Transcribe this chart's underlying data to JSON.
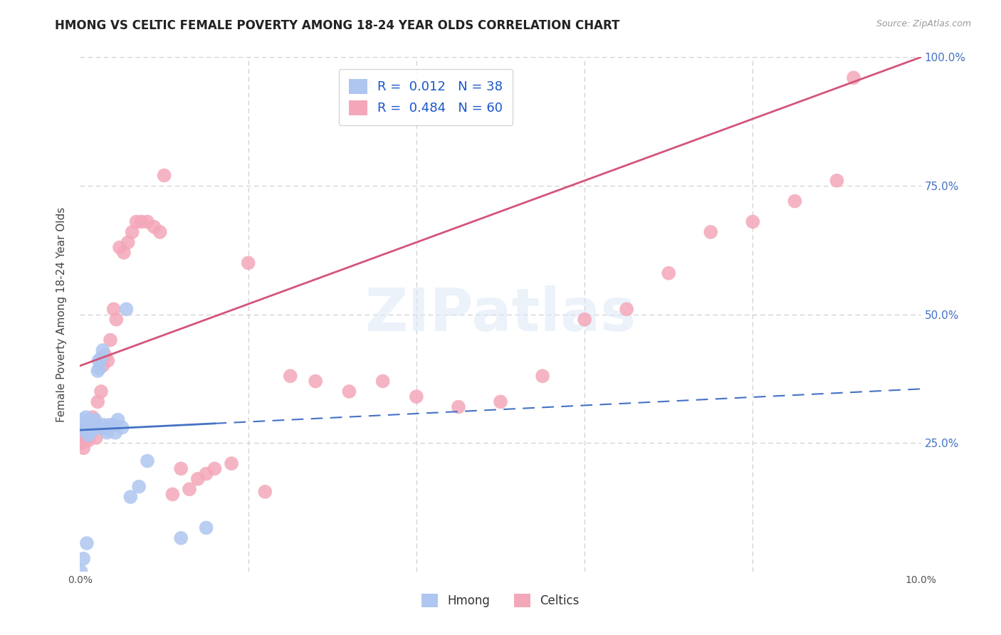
{
  "title": "HMONG VS CELTIC FEMALE POVERTY AMONG 18-24 YEAR OLDS CORRELATION CHART",
  "source": "Source: ZipAtlas.com",
  "ylabel": "Female Poverty Among 18-24 Year Olds",
  "background_color": "#ffffff",
  "grid_color": "#cccccc",
  "hmong_color": "#aec6f0",
  "celtic_color": "#f4a7b9",
  "hmong_line_color": "#4472c4",
  "celtic_line_color": "#d4547a",
  "hmong_R": 0.012,
  "hmong_N": 38,
  "celtic_R": 0.484,
  "celtic_N": 60,
  "legend_color": "#1a56cc",
  "xlim": [
    0.0,
    0.1
  ],
  "ylim": [
    0.0,
    1.0
  ],
  "watermark": "ZIPatlas",
  "title_fontsize": 12,
  "axis_label_fontsize": 11,
  "tick_fontsize": 10,
  "legend_fontsize": 13,
  "hmong_x": [
    0.0002,
    0.0003,
    0.0005,
    0.0007,
    0.0009,
    0.001,
    0.0011,
    0.0012,
    0.0013,
    0.0015,
    0.0016,
    0.0017,
    0.0018,
    0.0019,
    0.002,
    0.0021,
    0.0022,
    0.0023,
    0.0025,
    0.0027,
    0.0028,
    0.003,
    0.0032,
    0.0033,
    0.0035,
    0.004,
    0.0042,
    0.0045,
    0.005,
    0.0055,
    0.0001,
    0.0004,
    0.0008,
    0.006,
    0.007,
    0.008,
    0.012,
    0.015
  ],
  "hmong_y": [
    0.285,
    0.295,
    0.275,
    0.3,
    0.27,
    0.265,
    0.29,
    0.28,
    0.285,
    0.275,
    0.285,
    0.28,
    0.295,
    0.285,
    0.28,
    0.39,
    0.41,
    0.395,
    0.415,
    0.43,
    0.285,
    0.28,
    0.27,
    0.275,
    0.285,
    0.285,
    0.27,
    0.295,
    0.28,
    0.51,
    0.0,
    0.025,
    0.055,
    0.145,
    0.165,
    0.215,
    0.065,
    0.085
  ],
  "celtic_x": [
    0.0003,
    0.0005,
    0.0007,
    0.0009,
    0.0011,
    0.0013,
    0.0015,
    0.0017,
    0.0019,
    0.0021,
    0.0023,
    0.0025,
    0.0027,
    0.003,
    0.0033,
    0.0036,
    0.004,
    0.0043,
    0.0047,
    0.0052,
    0.0057,
    0.0062,
    0.0067,
    0.0073,
    0.008,
    0.0088,
    0.0095,
    0.01,
    0.011,
    0.012,
    0.013,
    0.014,
    0.015,
    0.016,
    0.018,
    0.02,
    0.022,
    0.025,
    0.028,
    0.032,
    0.036,
    0.04,
    0.045,
    0.05,
    0.055,
    0.06,
    0.065,
    0.07,
    0.075,
    0.08,
    0.085,
    0.09,
    0.092,
    0.0001,
    0.0002,
    0.0004,
    0.0006,
    0.0008,
    0.001,
    0.0012
  ],
  "celtic_y": [
    0.265,
    0.26,
    0.28,
    0.265,
    0.29,
    0.275,
    0.3,
    0.28,
    0.26,
    0.33,
    0.28,
    0.35,
    0.4,
    0.42,
    0.41,
    0.45,
    0.51,
    0.49,
    0.63,
    0.62,
    0.64,
    0.66,
    0.68,
    0.68,
    0.68,
    0.67,
    0.66,
    0.77,
    0.15,
    0.2,
    0.16,
    0.18,
    0.19,
    0.2,
    0.21,
    0.6,
    0.155,
    0.38,
    0.37,
    0.35,
    0.37,
    0.34,
    0.32,
    0.33,
    0.38,
    0.49,
    0.51,
    0.58,
    0.66,
    0.68,
    0.72,
    0.76,
    0.96,
    0.27,
    0.25,
    0.24,
    0.27,
    0.26,
    0.255,
    0.27
  ]
}
